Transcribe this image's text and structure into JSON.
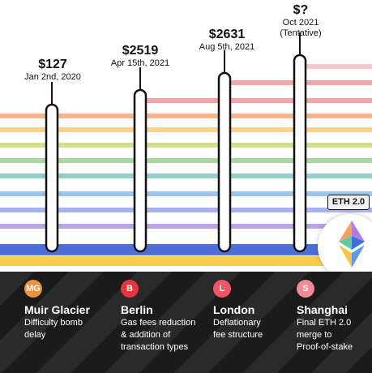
{
  "milestones": [
    {
      "price": "$127",
      "date": "Jan 2nd, 2020"
    },
    {
      "price": "$2519",
      "date": "Apr 15th, 2021"
    },
    {
      "price": "$2631",
      "date": "Aug 5th, 2021"
    },
    {
      "price": "$?",
      "date": "Oct 2021",
      "note": "(Tentative)"
    }
  ],
  "eth_badge": "ETH 2.0",
  "upgrades": [
    {
      "abbr": "MG",
      "name": "Muir Glacier",
      "desc": [
        "Difficulty bomb",
        "delay"
      ],
      "color": "#f0923a"
    },
    {
      "abbr": "B",
      "name": "Berlin",
      "desc": [
        "Gas fees reduction",
        "& addition of",
        "transaction types"
      ],
      "color": "#e8343f"
    },
    {
      "abbr": "L",
      "name": "London",
      "desc": [
        "Deflationary",
        "fee structure"
      ],
      "color": "#ef5566"
    },
    {
      "abbr": "S",
      "name": "Shanghai",
      "desc": [
        "Final ETH 2.0",
        "merge to",
        "Proof-of-stake"
      ],
      "color": "#f08b94"
    }
  ],
  "stripe_colors": [
    "#f6c8c8",
    "#f4a6a6",
    "#f6b48a",
    "#f6d28a",
    "#cfe08f",
    "#a8d8a0",
    "#8fd0c8",
    "#9cc3ea",
    "#a8b2ee",
    "#b8a4e6",
    "#4e6fd8",
    "#f7cf4a"
  ]
}
